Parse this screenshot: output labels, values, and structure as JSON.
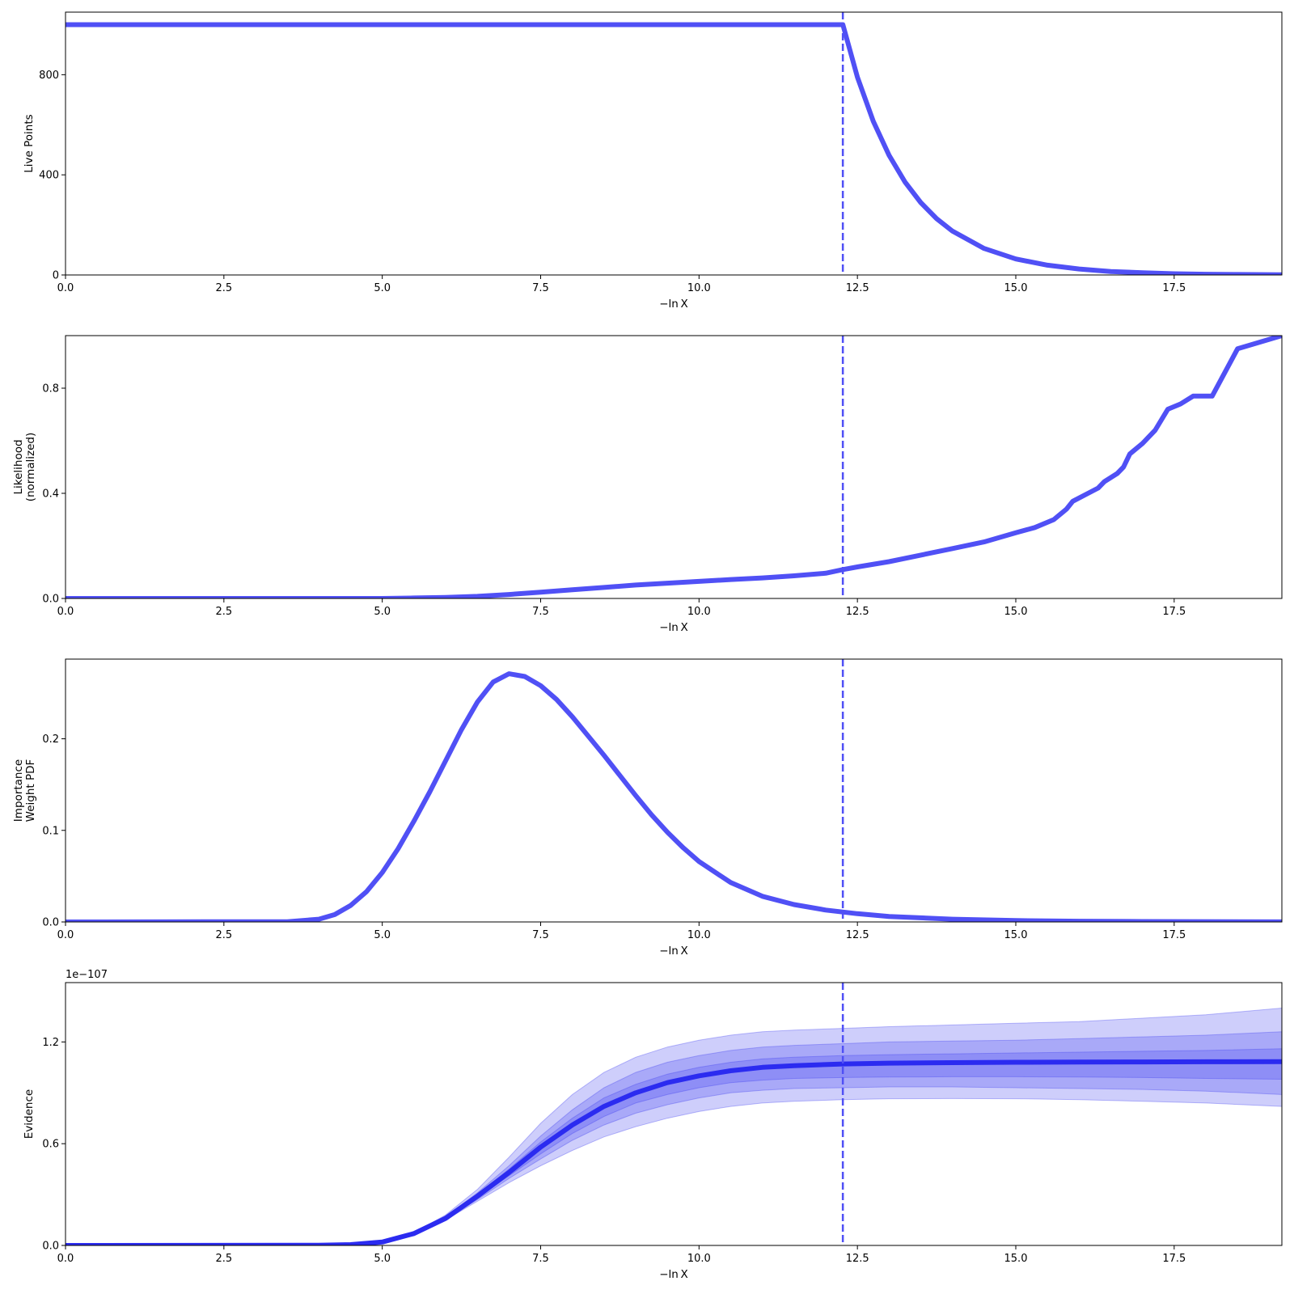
{
  "colors": {
    "line": "#5050F5",
    "evidence_line": "#2B2BF0",
    "band": "#4040F0",
    "axes": "#000000",
    "background": "#ffffff"
  },
  "chart_data": [
    {
      "type": "line",
      "xlabel": "−ln X",
      "ylabel": [
        "Live Points"
      ],
      "xlim": [
        0,
        19.2
      ],
      "ylim": [
        0,
        1050
      ],
      "xticks": [
        0.0,
        2.5,
        5.0,
        7.5,
        10.0,
        12.5,
        15.0,
        17.5
      ],
      "xtick_labels": [
        "0.0",
        "2.5",
        "5.0",
        "7.5",
        "10.0",
        "12.5",
        "15.0",
        "17.5"
      ],
      "yticks": [
        0,
        400,
        800
      ],
      "ytick_labels": [
        "0",
        "400",
        "800"
      ],
      "vline_x": 12.27,
      "series": [
        {
          "x": [
            0,
            12.27,
            12.5,
            12.75,
            13.0,
            13.25,
            13.5,
            13.75,
            14.0,
            14.5,
            15.0,
            15.5,
            16.0,
            16.5,
            17.0,
            17.5,
            18.0,
            18.5,
            19.2
          ],
          "y": [
            1000,
            1000,
            790,
            614,
            478,
            372,
            289,
            225,
            175,
            106,
            64,
            39,
            24,
            14,
            9,
            5,
            3,
            2,
            1
          ]
        }
      ]
    },
    {
      "type": "line",
      "xlabel": "−ln X",
      "ylabel": [
        "Likelihood",
        "(normalized)"
      ],
      "xlim": [
        0,
        19.2
      ],
      "ylim": [
        0,
        1.0
      ],
      "xticks": [
        0.0,
        2.5,
        5.0,
        7.5,
        10.0,
        12.5,
        15.0,
        17.5
      ],
      "xtick_labels": [
        "0.0",
        "2.5",
        "5.0",
        "7.5",
        "10.0",
        "12.5",
        "15.0",
        "17.5"
      ],
      "yticks": [
        0.0,
        0.4,
        0.8
      ],
      "ytick_labels": [
        "0.0",
        "0.4",
        "0.8"
      ],
      "vline_x": 12.27,
      "series": [
        {
          "x": [
            0,
            5.0,
            5.5,
            6.0,
            6.5,
            7.0,
            7.5,
            8.0,
            8.5,
            9.0,
            9.5,
            10.0,
            10.5,
            11.0,
            11.5,
            12.0,
            12.27,
            12.5,
            13.0,
            13.5,
            14.0,
            14.5,
            15.0,
            15.3,
            15.6,
            15.8,
            15.9,
            16.1,
            16.3,
            16.4,
            16.6,
            16.7,
            16.8,
            17.0,
            17.2,
            17.4,
            17.6,
            17.8,
            18.1,
            18.5,
            19.2
          ],
          "y": [
            0,
            0,
            0.002,
            0.004,
            0.008,
            0.015,
            0.024,
            0.033,
            0.042,
            0.051,
            0.058,
            0.065,
            0.072,
            0.078,
            0.086,
            0.096,
            0.11,
            0.12,
            0.14,
            0.165,
            0.19,
            0.215,
            0.25,
            0.27,
            0.3,
            0.34,
            0.37,
            0.395,
            0.42,
            0.445,
            0.475,
            0.5,
            0.55,
            0.59,
            0.64,
            0.72,
            0.74,
            0.77,
            0.77,
            0.95,
            1.0
          ]
        }
      ]
    },
    {
      "type": "line",
      "xlabel": "−ln X",
      "ylabel": [
        "Importance",
        "Weight PDF"
      ],
      "xlim": [
        0,
        19.2
      ],
      "ylim": [
        0,
        0.287
      ],
      "xticks": [
        0.0,
        2.5,
        5.0,
        7.5,
        10.0,
        12.5,
        15.0,
        17.5
      ],
      "xtick_labels": [
        "0.0",
        "2.5",
        "5.0",
        "7.5",
        "10.0",
        "12.5",
        "15.0",
        "17.5"
      ],
      "yticks": [
        0.0,
        0.1,
        0.2
      ],
      "ytick_labels": [
        "0.0",
        "0.1",
        "0.2"
      ],
      "vline_x": 12.27,
      "series": [
        {
          "x": [
            0,
            3.5,
            4.0,
            4.25,
            4.5,
            4.75,
            5.0,
            5.25,
            5.5,
            5.75,
            6.0,
            6.25,
            6.5,
            6.75,
            7.0,
            7.25,
            7.5,
            7.75,
            8.0,
            8.25,
            8.5,
            8.75,
            9.0,
            9.25,
            9.5,
            9.75,
            10.0,
            10.5,
            11.0,
            11.5,
            12.0,
            12.5,
            13.0,
            14.0,
            15.0,
            16.0,
            17.0,
            19.2
          ],
          "y": [
            0,
            0.0003,
            0.003,
            0.008,
            0.018,
            0.033,
            0.054,
            0.08,
            0.11,
            0.142,
            0.176,
            0.21,
            0.24,
            0.262,
            0.271,
            0.268,
            0.258,
            0.243,
            0.224,
            0.203,
            0.182,
            0.16,
            0.138,
            0.117,
            0.098,
            0.081,
            0.066,
            0.043,
            0.028,
            0.019,
            0.013,
            0.009,
            0.006,
            0.003,
            0.0015,
            0.0008,
            0.0004,
            0.0001
          ]
        }
      ]
    },
    {
      "type": "area",
      "xlabel": "−ln X",
      "ylabel": [
        "Evidence"
      ],
      "y_offset_label": "1e−107",
      "xlim": [
        0,
        19.2
      ],
      "ylim": [
        0,
        1.55
      ],
      "xticks": [
        0.0,
        2.5,
        5.0,
        7.5,
        10.0,
        12.5,
        15.0,
        17.5
      ],
      "xtick_labels": [
        "0.0",
        "2.5",
        "5.0",
        "7.5",
        "10.0",
        "12.5",
        "15.0",
        "17.5"
      ],
      "yticks": [
        0.0,
        0.6,
        1.2
      ],
      "ytick_labels": [
        "0.0",
        "0.6",
        "1.2"
      ],
      "vline_x": 12.27,
      "x": [
        0,
        4.0,
        4.5,
        5.0,
        5.5,
        6.0,
        6.5,
        7.0,
        7.5,
        8.0,
        8.5,
        9.0,
        9.5,
        10.0,
        10.5,
        11.0,
        11.5,
        12.27,
        13.0,
        14.0,
        15.0,
        16.0,
        17.0,
        18.0,
        19.2
      ],
      "median": [
        0,
        0.001,
        0.005,
        0.02,
        0.07,
        0.16,
        0.29,
        0.43,
        0.58,
        0.71,
        0.82,
        0.9,
        0.96,
        1.0,
        1.03,
        1.05,
        1.06,
        1.07,
        1.075,
        1.078,
        1.08,
        1.081,
        1.082,
        1.083,
        1.084
      ],
      "bands": [
        {
          "lower": [
            0,
            0.001,
            0.005,
            0.02,
            0.07,
            0.15,
            0.26,
            0.37,
            0.47,
            0.56,
            0.64,
            0.7,
            0.75,
            0.79,
            0.82,
            0.84,
            0.85,
            0.86,
            0.865,
            0.866,
            0.865,
            0.86,
            0.85,
            0.84,
            0.82
          ],
          "upper": [
            0,
            0.001,
            0.005,
            0.022,
            0.075,
            0.18,
            0.33,
            0.52,
            0.72,
            0.89,
            1.02,
            1.11,
            1.17,
            1.21,
            1.24,
            1.26,
            1.27,
            1.28,
            1.29,
            1.3,
            1.31,
            1.32,
            1.34,
            1.36,
            1.4
          ]
        },
        {
          "lower": [
            0,
            0.001,
            0.005,
            0.02,
            0.07,
            0.155,
            0.27,
            0.395,
            0.51,
            0.62,
            0.71,
            0.78,
            0.83,
            0.87,
            0.9,
            0.915,
            0.925,
            0.93,
            0.935,
            0.935,
            0.93,
            0.925,
            0.92,
            0.91,
            0.89
          ],
          "upper": [
            0,
            0.001,
            0.005,
            0.021,
            0.073,
            0.17,
            0.31,
            0.47,
            0.645,
            0.8,
            0.93,
            1.02,
            1.08,
            1.12,
            1.15,
            1.17,
            1.18,
            1.19,
            1.2,
            1.205,
            1.21,
            1.22,
            1.23,
            1.24,
            1.26
          ]
        },
        {
          "lower": [
            0,
            0.001,
            0.005,
            0.02,
            0.07,
            0.157,
            0.28,
            0.41,
            0.54,
            0.66,
            0.76,
            0.84,
            0.89,
            0.93,
            0.96,
            0.975,
            0.985,
            0.99,
            0.993,
            0.995,
            0.995,
            0.993,
            0.99,
            0.985,
            0.98
          ],
          "upper": [
            0,
            0.001,
            0.005,
            0.02,
            0.071,
            0.165,
            0.3,
            0.45,
            0.61,
            0.75,
            0.87,
            0.95,
            1.01,
            1.05,
            1.08,
            1.1,
            1.11,
            1.12,
            1.125,
            1.13,
            1.135,
            1.14,
            1.145,
            1.15,
            1.16
          ]
        }
      ]
    }
  ]
}
